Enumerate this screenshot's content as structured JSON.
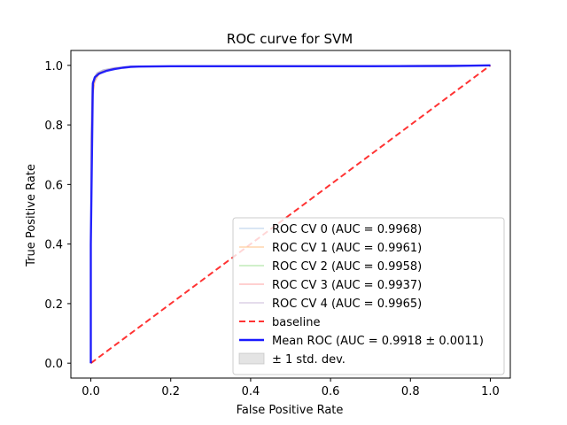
{
  "chart_data": {
    "type": "line",
    "title": "ROC curve for SVM",
    "xlabel": "False Positive Rate",
    "ylabel": "True Positive Rate",
    "xlim": [
      -0.05,
      1.05
    ],
    "ylim": [
      -0.05,
      1.05
    ],
    "xticks": [
      "0.0",
      "0.2",
      "0.4",
      "0.6",
      "0.8",
      "1.0"
    ],
    "yticks": [
      "0.0",
      "0.2",
      "0.4",
      "0.6",
      "0.8",
      "1.0"
    ],
    "grid": false,
    "legend_position": "lower-right",
    "series": [
      {
        "name": "ROC CV 0 (AUC = 0.9968)",
        "color": "#aec7e8",
        "x": [
          0.0,
          0.0,
          0.003,
          0.008,
          0.015,
          0.03,
          0.06,
          0.1,
          0.2,
          0.5,
          1.0
        ],
        "y": [
          0.0,
          0.75,
          0.93,
          0.96,
          0.975,
          0.985,
          0.993,
          0.997,
          0.998,
          0.999,
          1.0
        ]
      },
      {
        "name": "ROC CV 1 (AUC = 0.9961)",
        "color": "#ffbb78",
        "x": [
          0.0,
          0.0,
          0.004,
          0.009,
          0.016,
          0.03,
          0.06,
          0.1,
          0.2,
          0.5,
          1.0
        ],
        "y": [
          0.0,
          0.72,
          0.92,
          0.955,
          0.972,
          0.983,
          0.992,
          0.996,
          0.998,
          0.999,
          1.0
        ]
      },
      {
        "name": "ROC CV 2 (AUC = 0.9958)",
        "color": "#98df8a",
        "x": [
          0.0,
          0.0,
          0.004,
          0.009,
          0.017,
          0.03,
          0.06,
          0.1,
          0.2,
          0.5,
          1.0
        ],
        "y": [
          0.0,
          0.7,
          0.915,
          0.95,
          0.97,
          0.982,
          0.991,
          0.996,
          0.998,
          0.999,
          1.0
        ]
      },
      {
        "name": "ROC CV 3 (AUC = 0.9937)",
        "color": "#ff9896",
        "x": [
          0.0,
          0.0,
          0.005,
          0.01,
          0.018,
          0.03,
          0.06,
          0.1,
          0.2,
          0.5,
          1.0
        ],
        "y": [
          0.0,
          0.68,
          0.9,
          0.945,
          0.965,
          0.98,
          0.99,
          0.995,
          0.997,
          0.999,
          1.0
        ]
      },
      {
        "name": "ROC CV 4 (AUC = 0.9965)",
        "color": "#c5b0d5",
        "x": [
          0.0,
          0.0,
          0.003,
          0.008,
          0.015,
          0.03,
          0.06,
          0.1,
          0.2,
          0.5,
          1.0
        ],
        "y": [
          0.0,
          0.74,
          0.925,
          0.958,
          0.974,
          0.984,
          0.992,
          0.997,
          0.998,
          0.999,
          1.0
        ]
      },
      {
        "name": "baseline",
        "color": "#ff0000",
        "style": "dashed",
        "x": [
          0.0,
          1.0
        ],
        "y": [
          0.0,
          1.0
        ]
      },
      {
        "name": "Mean ROC (AUC = 0.9918 ± 0.0011)",
        "color": "#0000ff",
        "x": [
          0.0,
          0.0,
          0.005,
          0.01,
          0.02,
          0.04,
          0.06,
          0.08,
          0.1,
          0.12,
          0.2,
          0.3,
          0.5,
          0.7,
          0.9,
          0.95,
          1.0
        ],
        "y": [
          0.0,
          0.4,
          0.94,
          0.96,
          0.972,
          0.982,
          0.988,
          0.992,
          0.995,
          0.996,
          0.997,
          0.997,
          0.997,
          0.997,
          0.998,
          0.999,
          1.0
        ]
      }
    ],
    "band": {
      "name": "± 1 std. dev.",
      "color": "#bbbbbb"
    }
  }
}
